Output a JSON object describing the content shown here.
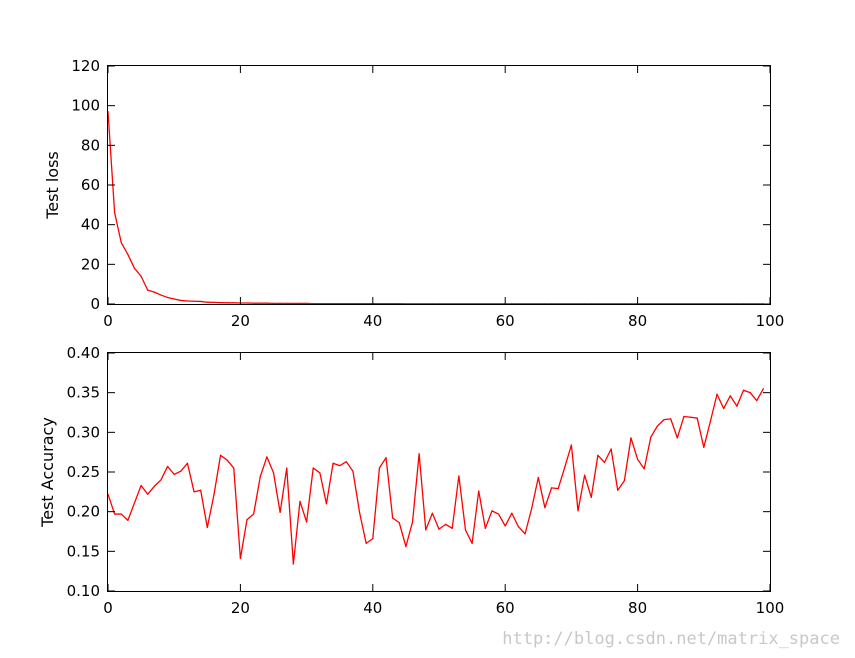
{
  "watermark": "http://blog.csdn.net/matrix_space",
  "colors": {
    "line": "#ff0000",
    "axes": "#000000",
    "background": "#ffffff"
  },
  "chart_data": [
    {
      "type": "line",
      "title": "",
      "xlabel": "",
      "ylabel": "Test loss",
      "xlim": [
        0,
        100
      ],
      "ylim": [
        0,
        120
      ],
      "xticks": [
        0,
        20,
        40,
        60,
        80,
        100
      ],
      "yticks": [
        0,
        20,
        40,
        60,
        80,
        100,
        120
      ],
      "grid": false,
      "series": [
        {
          "color": "#ff0000",
          "x": [
            0,
            1,
            2,
            3,
            4,
            5,
            6,
            7,
            8,
            9,
            10,
            11,
            12,
            13,
            14,
            15,
            16,
            17,
            18,
            19,
            20,
            21,
            22,
            23,
            24,
            25,
            26,
            27,
            28,
            29,
            30,
            31,
            32,
            33,
            34,
            35,
            36,
            37,
            38,
            39,
            40,
            41,
            42,
            43,
            44,
            45,
            46,
            47,
            48,
            49,
            50,
            51,
            52,
            53,
            54,
            55,
            56,
            57,
            58,
            59,
            60,
            61,
            62,
            63,
            64,
            65,
            66,
            67,
            68,
            69,
            70,
            71,
            72,
            73,
            74,
            75,
            76,
            77,
            78,
            79,
            80,
            81,
            82,
            83,
            84,
            85,
            86,
            87,
            88,
            89,
            90,
            91,
            92,
            93,
            94,
            95,
            96,
            97,
            98,
            99
          ],
          "values": [
            97,
            46,
            31,
            25,
            18,
            14,
            7,
            6,
            4.5,
            3.3,
            2.5,
            1.8,
            1.5,
            1.4,
            1.3,
            0.9,
            0.8,
            0.7,
            0.6,
            0.6,
            0.5,
            0.5,
            0.4,
            0.4,
            0.4,
            0.3,
            0.3,
            0.3,
            0.3,
            0.3,
            0.3,
            0.2,
            0.2,
            0.2,
            0.2,
            0.2,
            0.2,
            0.2,
            0.2,
            0.2,
            0.2,
            0.2,
            0.2,
            0.2,
            0.2,
            0.1,
            0.1,
            0.1,
            0.1,
            0.1,
            0.1,
            0.1,
            0.1,
            0.1,
            0.1,
            0.1,
            0.1,
            0.1,
            0.1,
            0.1,
            0.1,
            0.1,
            0.1,
            0.1,
            0.1,
            0.1,
            0.1,
            0.1,
            0.1,
            0.1,
            0.1,
            0.1,
            0.1,
            0.1,
            0.1,
            0.1,
            0.1,
            0.1,
            0.1,
            0.1,
            0.1,
            0.1,
            0.1,
            0.1,
            0.1,
            0.1,
            0.1,
            0.1,
            0.1,
            0.1,
            0.1,
            0.1,
            0.1,
            0.1,
            0.1,
            0.1,
            0.1,
            0.1,
            0.1,
            0.1
          ]
        }
      ]
    },
    {
      "type": "line",
      "title": "",
      "xlabel": "",
      "ylabel": "Test Accuracy",
      "xlim": [
        0,
        100
      ],
      "ylim": [
        0.1,
        0.4
      ],
      "xticks": [
        0,
        20,
        40,
        60,
        80,
        100
      ],
      "yticks": [
        0.1,
        0.15,
        0.2,
        0.25,
        0.3,
        0.35,
        0.4
      ],
      "grid": false,
      "series": [
        {
          "color": "#ff0000",
          "x": [
            0,
            1,
            2,
            3,
            4,
            5,
            6,
            7,
            8,
            9,
            10,
            11,
            12,
            13,
            14,
            15,
            16,
            17,
            18,
            19,
            20,
            21,
            22,
            23,
            24,
            25,
            26,
            27,
            28,
            29,
            30,
            31,
            32,
            33,
            34,
            35,
            36,
            37,
            38,
            39,
            40,
            41,
            42,
            43,
            44,
            45,
            46,
            47,
            48,
            49,
            50,
            51,
            52,
            53,
            54,
            55,
            56,
            57,
            58,
            59,
            60,
            61,
            62,
            63,
            64,
            65,
            66,
            67,
            68,
            69,
            70,
            71,
            72,
            73,
            74,
            75,
            76,
            77,
            78,
            79,
            80,
            81,
            82,
            83,
            84,
            85,
            86,
            87,
            88,
            89,
            90,
            91,
            92,
            93,
            94,
            95,
            96,
            97,
            98,
            99
          ],
          "values": [
            0.222,
            0.197,
            0.197,
            0.189,
            0.211,
            0.233,
            0.222,
            0.232,
            0.24,
            0.257,
            0.247,
            0.251,
            0.261,
            0.225,
            0.227,
            0.18,
            0.221,
            0.271,
            0.265,
            0.255,
            0.141,
            0.19,
            0.197,
            0.244,
            0.269,
            0.249,
            0.199,
            0.255,
            0.134,
            0.213,
            0.187,
            0.255,
            0.249,
            0.21,
            0.261,
            0.258,
            0.263,
            0.251,
            0.199,
            0.16,
            0.166,
            0.255,
            0.268,
            0.192,
            0.186,
            0.156,
            0.187,
            0.273,
            0.177,
            0.198,
            0.178,
            0.184,
            0.179,
            0.245,
            0.177,
            0.16,
            0.226,
            0.179,
            0.201,
            0.197,
            0.182,
            0.198,
            0.181,
            0.172,
            0.204,
            0.243,
            0.205,
            0.23,
            0.229,
            0.256,
            0.284,
            0.201,
            0.246,
            0.218,
            0.271,
            0.262,
            0.279,
            0.227,
            0.239,
            0.293,
            0.266,
            0.254,
            0.294,
            0.308,
            0.316,
            0.317,
            0.293,
            0.32,
            0.319,
            0.318,
            0.281,
            0.314,
            0.348,
            0.33,
            0.346,
            0.333,
            0.353,
            0.35,
            0.34,
            0.355
          ]
        }
      ]
    }
  ]
}
